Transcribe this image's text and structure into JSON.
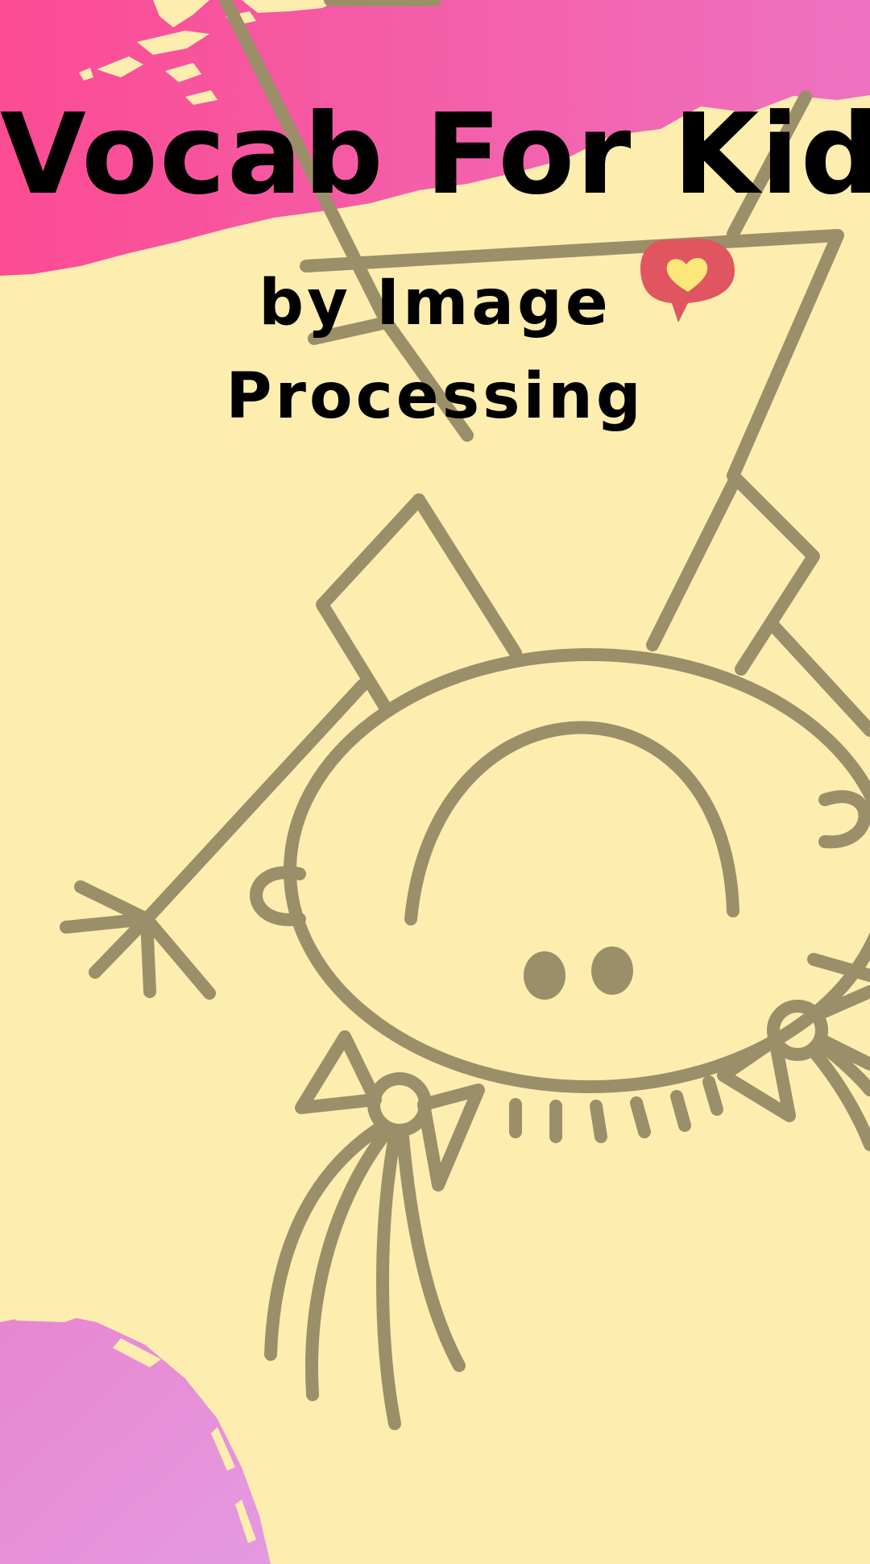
{
  "title": "Vocab For Kid",
  "subtitle": {
    "line1": "by Image",
    "line2": "Processing"
  },
  "icons": {
    "badge": "heart-speech-bubble-icon",
    "illustration": "upside-down-kid-illustration"
  },
  "colors": {
    "background": "#fdeeb0",
    "brush_top_start": "#fb4b93",
    "brush_top_end": "#ee72c0",
    "brush_bottom": "#e58dd6",
    "line_art": "#9b8f6a",
    "heart_bubble": "#e05560",
    "heart": "#fce77a",
    "text": "#000000"
  }
}
